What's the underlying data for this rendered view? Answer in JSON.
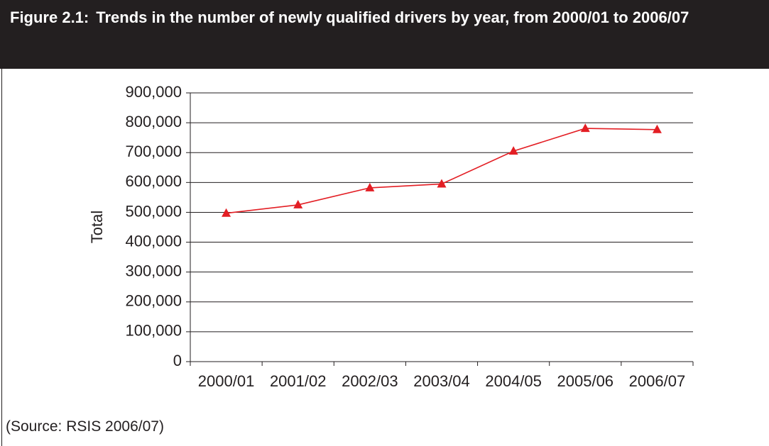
{
  "chart_data": {
    "type": "line",
    "figure_label": "Figure 2.1:",
    "title": "Trends in the number of newly qualified drivers by year, from 2000/01 to 2006/07",
    "y_label": "Total",
    "source": "(Source: RSIS 2006/07)",
    "categories": [
      "2000/01",
      "2001/02",
      "2002/03",
      "2003/04",
      "2004/05",
      "2005/06",
      "2006/07"
    ],
    "series": [
      {
        "name": "Total",
        "color": "#e31e24",
        "values": [
          497000,
          525000,
          582000,
          595000,
          705000,
          781000,
          777000
        ]
      }
    ],
    "ylim": [
      0,
      900000
    ],
    "yticks": [
      0,
      {
        "value": 100000,
        "label": "100,000"
      },
      {
        "value": 200000,
        "label": "200,000"
      },
      {
        "value": 300000,
        "label": "300,000"
      },
      {
        "value": 400000,
        "label": "400,000"
      },
      {
        "value": 500000,
        "label": "500,000"
      },
      {
        "value": 600000,
        "label": "600,000"
      },
      {
        "value": 700000,
        "label": "700,000"
      },
      {
        "value": 800000,
        "label": "800,000"
      },
      {
        "value": 900000,
        "label": "900,000"
      }
    ],
    "grid": true
  }
}
